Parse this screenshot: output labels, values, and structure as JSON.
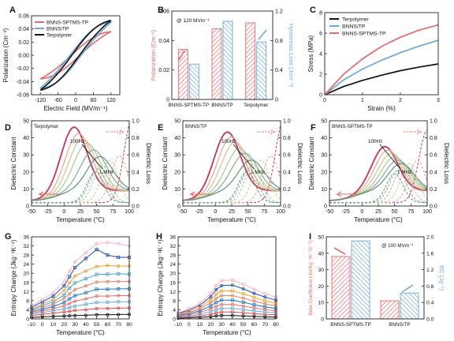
{
  "colors": {
    "red": "#e8696b",
    "blue": "#6ba8d8",
    "black": "#111111",
    "darkred": "#cc2244",
    "pink": "#f08080"
  },
  "chart_data": [
    {
      "id": "A",
      "type": "line",
      "panel_label": "A",
      "xlabel": "Electric Field (MV/m⁻¹)",
      "ylabel": "Polarization (Cm⁻²)",
      "xlim": [
        -150,
        150
      ],
      "ylim": [
        -0.06,
        0.06
      ],
      "xticks": [
        -120,
        -60,
        0,
        60,
        120
      ],
      "yticks": [
        -0.06,
        -0.04,
        -0.02,
        0.0,
        0.02,
        0.04,
        0.06
      ],
      "ytick_labels": [
        "-0.06",
        "-0.04",
        "-0.02",
        "0.00",
        "0.02",
        "0.04",
        "0.06"
      ],
      "legend_position": "top-left",
      "series": [
        {
          "name": "BNNS-SPTMS-TP",
          "color": "#e8696b",
          "pmax": 0.036,
          "hyst": 0.006
        },
        {
          "name": "BNNS/TP",
          "color": "#6ba8d8",
          "pmax": 0.05,
          "hyst": 0.011
        },
        {
          "name": "Terpolymer",
          "color": "#111111",
          "pmax": 0.053,
          "hyst": 0.008
        }
      ]
    },
    {
      "id": "B",
      "type": "bar",
      "panel_label": "B",
      "annotation": "@ 120 MVm⁻¹",
      "categories": [
        "BNNS-SPTMS-TP",
        "BNNS/TP",
        "Terpolymer"
      ],
      "ylabel": "Polarization (Cm⁻²)",
      "y2label": "Hysteresis Loss (Jcm⁻³)",
      "ylim": [
        0,
        0.06
      ],
      "y2lim": [
        0,
        1.2
      ],
      "yticks": [
        0,
        0.02,
        0.04,
        0.06
      ],
      "ytick_labels": [
        "0",
        "0.02",
        "0.04",
        "0.06"
      ],
      "y2ticks": [
        0,
        0.4,
        0.8,
        1.2
      ],
      "y2tick_labels": [
        "0",
        "0.4",
        "0.8",
        "1.2"
      ],
      "series": [
        {
          "axis": "left",
          "color": "#e8696b",
          "values": [
            0.034,
            0.048,
            0.052
          ]
        },
        {
          "axis": "right",
          "color": "#6ba8d8",
          "values": [
            0.48,
            1.06,
            0.78
          ]
        }
      ]
    },
    {
      "id": "C",
      "type": "line",
      "panel_label": "C",
      "xlabel": "Strain (%)",
      "ylabel": "Stress (MPa)",
      "xlim": [
        0,
        3
      ],
      "ylim": [
        0,
        8
      ],
      "xticks": [
        0,
        1,
        2,
        3
      ],
      "yticks": [
        0,
        2,
        4,
        6,
        8
      ],
      "legend_position": "top-left",
      "series": [
        {
          "name": "Terpolymer",
          "color": "#111111",
          "x": [
            0,
            0.5,
            1,
            1.5,
            2,
            2.5,
            3
          ],
          "y": [
            0,
            0.8,
            1.4,
            1.9,
            2.35,
            2.7,
            3.0
          ]
        },
        {
          "name": "BNNS/TP",
          "color": "#6ba8d8",
          "x": [
            0,
            0.5,
            1,
            1.5,
            2,
            2.5,
            3
          ],
          "y": [
            0,
            1.45,
            2.5,
            3.35,
            4.1,
            4.75,
            5.3
          ]
        },
        {
          "name": "BNNS-SPTMS-TP",
          "color": "#e8696b",
          "x": [
            0,
            0.5,
            1,
            1.5,
            2,
            2.5,
            3
          ],
          "y": [
            0,
            2.0,
            3.5,
            4.7,
            5.6,
            6.3,
            6.8
          ]
        }
      ]
    },
    {
      "id": "D",
      "type": "line",
      "panel_label": "D",
      "series_label": "Terpolymer",
      "annotations": [
        "100Hz",
        "1 MHz"
      ],
      "xlabel": "Temperature (°C)",
      "ylabel": "Dielectric Constant",
      "y2label": "Dielectric Loss",
      "xlim": [
        -50,
        100
      ],
      "ylim": [
        0,
        50
      ],
      "y2lim": [
        0,
        1.0
      ],
      "xticks": [
        -50,
        -25,
        0,
        25,
        50,
        75,
        100
      ],
      "yticks": [
        0,
        10,
        20,
        30,
        40,
        50
      ],
      "y2ticks": [
        0,
        0.2,
        0.4,
        0.6,
        0.8,
        1.0
      ],
      "y2tick_labels": [
        "0.0",
        "0.2",
        "0.4",
        "0.6",
        "0.8",
        "1.0"
      ],
      "constant_peaks_100Hz_to_1MHz": [
        [
          15,
          47
        ],
        [
          22,
          43
        ],
        [
          28,
          40
        ],
        [
          35,
          37
        ],
        [
          45,
          33
        ],
        [
          55,
          29
        ]
      ],
      "loss_peaks_100Hz_to_1MHz": [
        [
          105,
          1.0
        ],
        [
          85,
          0.55
        ],
        [
          70,
          0.5
        ],
        [
          58,
          0.44
        ],
        [
          52,
          0.4
        ],
        [
          48,
          0.36
        ]
      ]
    },
    {
      "id": "E",
      "type": "line",
      "panel_label": "E",
      "series_label": "BNNS/TP",
      "annotations": [
        "100Hz",
        "1 MHz"
      ],
      "xlabel": "Temperature (°C)",
      "ylabel": "Dielectric Constant",
      "y2label": "Dielectric Loss",
      "xlim": [
        -50,
        100
      ],
      "ylim": [
        0,
        50
      ],
      "y2lim": [
        0,
        1.0
      ],
      "xticks": [
        -50,
        -25,
        0,
        25,
        50,
        75,
        100
      ],
      "yticks": [
        0,
        10,
        20,
        30,
        40,
        50
      ],
      "y2ticks": [
        0,
        0.2,
        0.4,
        0.6,
        0.8,
        1.0
      ],
      "y2tick_labels": [
        "0.0",
        "0.2",
        "0.4",
        "0.6",
        "0.8",
        "1.0"
      ],
      "constant_peaks_100Hz_to_1MHz": [
        [
          18,
          44
        ],
        [
          24,
          41
        ],
        [
          30,
          38
        ],
        [
          37,
          34
        ],
        [
          45,
          31
        ],
        [
          55,
          27
        ]
      ],
      "loss_peaks_100Hz_to_1MHz": [
        [
          105,
          0.98
        ],
        [
          85,
          0.55
        ],
        [
          70,
          0.5
        ],
        [
          58,
          0.45
        ],
        [
          52,
          0.4
        ],
        [
          48,
          0.36
        ]
      ]
    },
    {
      "id": "F",
      "type": "line",
      "panel_label": "F",
      "series_label": "BNNS-SPTMS-TP",
      "annotations": [
        "100Hz",
        "1 MHz"
      ],
      "xlabel": "Temperature (°C)",
      "ylabel": "Dielectric Constant",
      "y2label": "Dielectric Loss",
      "xlim": [
        -50,
        100
      ],
      "ylim": [
        0,
        50
      ],
      "y2lim": [
        0,
        1.0
      ],
      "xticks": [
        -50,
        -25,
        0,
        25,
        50,
        75,
        100
      ],
      "yticks": [
        0,
        10,
        20,
        30,
        40,
        50
      ],
      "y2ticks": [
        0,
        0.2,
        0.4,
        0.6,
        0.8,
        1.0
      ],
      "y2tick_labels": [
        "0.0",
        "0.2",
        "0.4",
        "0.6",
        "0.8",
        "1.0"
      ],
      "constant_peaks_100Hz_to_1MHz": [
        [
          35,
          35
        ],
        [
          40,
          33
        ],
        [
          45,
          31
        ],
        [
          50,
          29
        ],
        [
          55,
          27
        ],
        [
          60,
          25
        ]
      ],
      "loss_peaks_100Hz_to_1MHz": [
        [
          100,
          0.85
        ],
        [
          85,
          0.5
        ],
        [
          72,
          0.46
        ],
        [
          62,
          0.42
        ],
        [
          55,
          0.38
        ],
        [
          50,
          0.34
        ]
      ]
    },
    {
      "id": "G",
      "type": "line",
      "panel_label": "G",
      "xlabel": "Temperature (°C)",
      "ylabel": "Entropy Change (Jkg⁻¹K⁻¹)",
      "xlim": [
        -10,
        80
      ],
      "ylim": [
        0,
        36
      ],
      "xticks": [
        -10,
        0,
        10,
        20,
        30,
        40,
        50,
        60,
        70,
        80
      ],
      "yticks": [
        0,
        4,
        8,
        12,
        16,
        20,
        24,
        28,
        32,
        36
      ],
      "x": [
        -10,
        0,
        10,
        20,
        25,
        30,
        40,
        50,
        60,
        70,
        80
      ],
      "series": [
        {
          "color": "#111111",
          "values": [
            0.6,
            0.9,
            1.1,
            1.3,
            1.4,
            1.5,
            1.6,
            1.8,
            1.8,
            1.9,
            2.0
          ]
        },
        {
          "color": "#d94c4c",
          "values": [
            1.5,
            2.0,
            2.5,
            3.0,
            3.3,
            3.7,
            4.0,
            4.5,
            4.6,
            4.7,
            4.8
          ]
        },
        {
          "color": "#6ba8d8",
          "values": [
            2.0,
            2.8,
            3.6,
            4.4,
            5.0,
            5.6,
            6.4,
            7.2,
            7.3,
            7.5,
            7.5
          ]
        },
        {
          "color": "#e8696b",
          "values": [
            2.5,
            3.5,
            4.5,
            5.8,
            6.8,
            7.8,
            8.8,
            10.0,
            10.0,
            10.2,
            10.2
          ]
        },
        {
          "color": "#1a73c9",
          "values": [
            3.0,
            4.2,
            5.5,
            7.2,
            8.8,
            10.2,
            11.5,
            13.0,
            13.0,
            13.2,
            13.2
          ]
        },
        {
          "color": "#e08060",
          "values": [
            3.5,
            5.0,
            6.5,
            9.0,
            11.0,
            12.8,
            14.5,
            16.2,
            16.3,
            16.4,
            16.4
          ]
        },
        {
          "color": "#3f9fd8",
          "values": [
            4.0,
            5.8,
            7.5,
            10.5,
            13.5,
            15.8,
            17.6,
            19.5,
            19.6,
            19.8,
            19.6
          ]
        },
        {
          "color": "#f3a030",
          "values": [
            4.5,
            6.5,
            8.6,
            12.5,
            15.8,
            18.8,
            21.0,
            23.0,
            23.4,
            23.2,
            23.2
          ]
        },
        {
          "color": "#1a4fbf",
          "values": [
            5.2,
            7.5,
            10.0,
            14.5,
            18.5,
            22.5,
            26.5,
            30.5,
            28.0,
            27.0,
            27.0
          ]
        },
        {
          "color": "#f9b4c8",
          "values": [
            5.8,
            8.5,
            11.5,
            16.5,
            21.0,
            25.0,
            29.0,
            33.0,
            33.5,
            33.0,
            32.0
          ]
        }
      ]
    },
    {
      "id": "H",
      "type": "line",
      "panel_label": "H",
      "xlabel": "Temperature (°C)",
      "ylabel": "Entropy Change (Jkg⁻¹K⁻¹)",
      "xlim": [
        -10,
        80
      ],
      "ylim": [
        0,
        36
      ],
      "xticks": [
        -10,
        0,
        10,
        20,
        30,
        40,
        50,
        60,
        70,
        80
      ],
      "yticks": [
        0,
        4,
        8,
        12,
        16,
        20,
        24,
        28,
        32,
        36
      ],
      "x": [
        -10,
        0,
        10,
        20,
        25,
        30,
        40,
        50,
        60,
        70,
        80
      ],
      "series": [
        {
          "color": "#111111",
          "values": [
            0.3,
            0.5,
            0.7,
            1.0,
            1.3,
            1.5,
            1.5,
            1.3,
            1.1,
            0.9,
            0.8
          ]
        },
        {
          "color": "#d94c4c",
          "values": [
            0.6,
            0.9,
            1.3,
            2.0,
            2.6,
            3.0,
            3.0,
            2.7,
            2.3,
            2.0,
            1.8
          ]
        },
        {
          "color": "#6ba8d8",
          "values": [
            0.9,
            1.4,
            2.0,
            3.2,
            4.0,
            4.6,
            4.6,
            4.1,
            3.5,
            3.0,
            2.7
          ]
        },
        {
          "color": "#e8696b",
          "values": [
            1.2,
            1.9,
            2.8,
            4.4,
            5.5,
            6.3,
            6.3,
            5.6,
            4.8,
            4.1,
            3.6
          ]
        },
        {
          "color": "#1a73c9",
          "values": [
            1.5,
            2.4,
            3.6,
            5.6,
            7.2,
            8.2,
            8.2,
            7.3,
            6.2,
            5.3,
            4.6
          ]
        },
        {
          "color": "#e08060",
          "values": [
            1.8,
            2.9,
            4.4,
            7.0,
            9.0,
            10.2,
            10.2,
            9.1,
            7.8,
            6.6,
            5.7
          ]
        },
        {
          "color": "#f3a030",
          "values": [
            2.1,
            3.4,
            5.2,
            8.4,
            10.8,
            12.2,
            12.3,
            11.0,
            9.4,
            8.0,
            6.9
          ]
        },
        {
          "color": "#1a4fbf",
          "values": [
            2.4,
            3.9,
            6.0,
            9.8,
            12.8,
            14.6,
            14.8,
            13.2,
            11.2,
            9.6,
            8.2
          ]
        },
        {
          "color": "#f9b4c8",
          "values": [
            2.7,
            4.4,
            6.8,
            11.2,
            14.6,
            16.8,
            17.0,
            15.2,
            12.9,
            11.0,
            9.5
          ]
        }
      ]
    },
    {
      "id": "I",
      "type": "bar",
      "panel_label": "I",
      "annotation": "@ 100 MVm⁻¹",
      "categories": [
        "BNNS-SPTMS-TP",
        "BNNS/TP"
      ],
      "ylabel": "Beta Coefficient (Jm³kg⁻¹K⁻¹C⁻²)",
      "y2label": "RC (Jg⁻¹)",
      "ylim": [
        0,
        50
      ],
      "y2lim": [
        0,
        2.0
      ],
      "yticks": [
        0,
        10,
        20,
        30,
        40,
        50
      ],
      "y2ticks": [
        0,
        0.4,
        0.8,
        1.2,
        1.6,
        2.0
      ],
      "y2tick_labels": [
        "0.0",
        "0.4",
        "0.8",
        "1.2",
        "1.6",
        "2.0"
      ],
      "series": [
        {
          "axis": "left",
          "color": "#e8696b",
          "values": [
            38,
            11
          ]
        },
        {
          "axis": "right",
          "color": "#6ba8d8",
          "values": [
            1.9,
            0.63
          ]
        }
      ]
    }
  ]
}
